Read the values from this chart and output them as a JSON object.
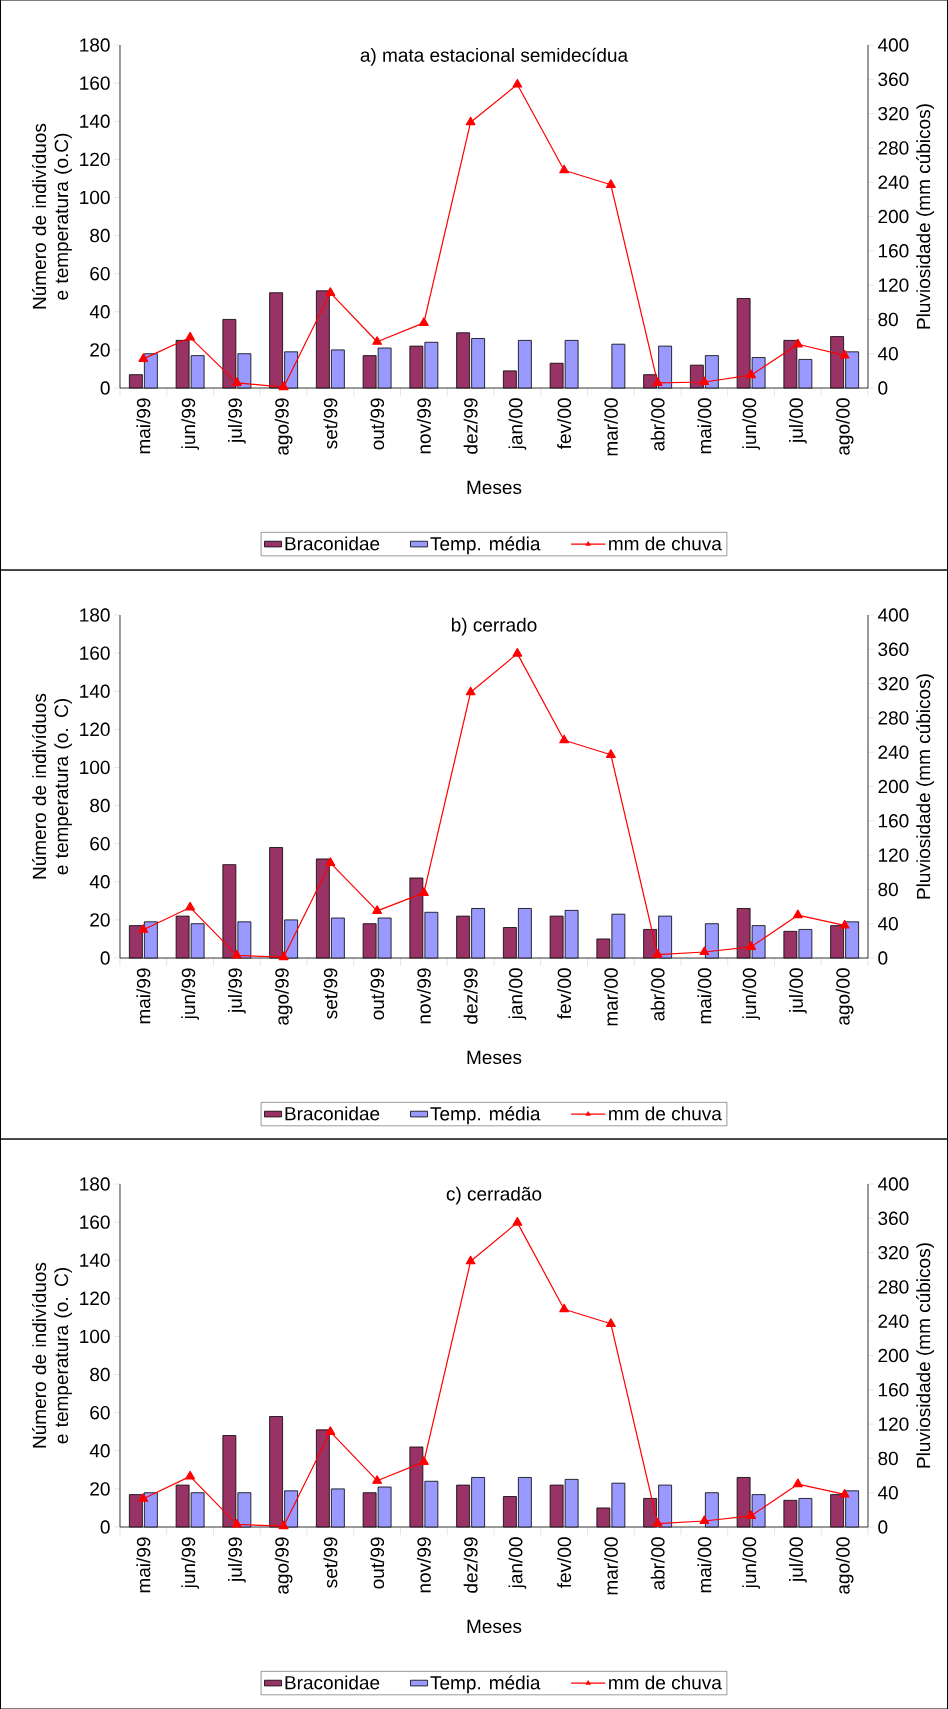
{
  "chart_data": [
    {
      "type": "bar",
      "title": "a) mata estacional semidecídua",
      "xlabel": "Meses",
      "ylabel": "Número de indivíduos e temperatura (o.C)",
      "y2label": "Pluviosidade (mm cúbicos)",
      "categories": [
        "mai/99",
        "jun/99",
        "jul/99",
        "ago/99",
        "set/99",
        "out/99",
        "nov/99",
        "dez/99",
        "jan/00",
        "fev/00",
        "mar/00",
        "abr/00",
        "mai/00",
        "jun/00",
        "jul/00",
        "ago/00"
      ],
      "series": [
        {
          "name": "Braconidae",
          "color": "#993366",
          "values": [
            7,
            25,
            36,
            50,
            51,
            17,
            22,
            29,
            9,
            13,
            null,
            7,
            12,
            47,
            25,
            27
          ]
        },
        {
          "name": "Temp. média",
          "color": "#9999ff",
          "values": [
            18,
            17,
            18,
            19,
            20,
            21,
            24,
            26,
            25,
            25,
            23,
            22,
            17,
            16,
            15,
            19
          ]
        },
        {
          "name": "mm de chuva",
          "type": "line",
          "axis": "y2",
          "marker": "triangle",
          "color": "#ff0000",
          "values": [
            34,
            59,
            6,
            1,
            111,
            54,
            76,
            310,
            354,
            254,
            237,
            6,
            7,
            15,
            51,
            38
          ]
        }
      ],
      "ylim": [
        0,
        180
      ],
      "yticks": [
        0,
        20,
        40,
        60,
        80,
        100,
        120,
        140,
        160,
        180
      ],
      "y2lim": [
        0,
        400
      ],
      "y2ticks": [
        0,
        40,
        80,
        120,
        160,
        200,
        240,
        280,
        320,
        360,
        400
      ],
      "legend": "bottom"
    },
    {
      "type": "bar",
      "title": "b) cerrado",
      "xlabel": "Meses",
      "ylabel": "Número de indivíduos e temperatura (o. C)",
      "y2label": "Pluviosidade (mm cúbicos)",
      "categories": [
        "mai/99",
        "jun/99",
        "jul/99",
        "ago/99",
        "set/99",
        "out/99",
        "nov/99",
        "dez/99",
        "jan/00",
        "fev/00",
        "mar/00",
        "abr/00",
        "mai/00",
        "jun/00",
        "jul/00",
        "ago/00"
      ],
      "series": [
        {
          "name": "Braconidae",
          "color": "#993366",
          "values": [
            17,
            22,
            49,
            58,
            52,
            18,
            42,
            22,
            16,
            22,
            10,
            15,
            null,
            26,
            14,
            17
          ]
        },
        {
          "name": "Temp. média",
          "color": "#9999ff",
          "values": [
            19,
            18,
            19,
            20,
            21,
            21,
            24,
            26,
            26,
            25,
            23,
            22,
            18,
            17,
            15,
            19
          ]
        },
        {
          "name": "mm de chuva",
          "type": "line",
          "axis": "y2",
          "marker": "triangle",
          "color": "#ff0000",
          "values": [
            33,
            59,
            3,
            1,
            111,
            55,
            76,
            310,
            355,
            254,
            237,
            4,
            7,
            13,
            50,
            38
          ]
        }
      ],
      "ylim": [
        0,
        180
      ],
      "yticks": [
        0,
        20,
        40,
        60,
        80,
        100,
        120,
        140,
        160,
        180
      ],
      "y2lim": [
        0,
        400
      ],
      "y2ticks": [
        0,
        40,
        80,
        120,
        160,
        200,
        240,
        280,
        320,
        360,
        400
      ],
      "legend": "bottom"
    },
    {
      "type": "bar",
      "title": "c) cerradão",
      "xlabel": "Meses",
      "ylabel": "Número de indivíduos e temperatura (o. C)",
      "y2label": "Pluviosidade (mm cúbicos)",
      "categories": [
        "mai/99",
        "jun/99",
        "jul/99",
        "ago/99",
        "set/99",
        "out/99",
        "nov/99",
        "dez/99",
        "jan/00",
        "fev/00",
        "mar/00",
        "abr/00",
        "mai/00",
        "jun/00",
        "jul/00",
        "ago/00"
      ],
      "series": [
        {
          "name": "Braconidae",
          "color": "#993366",
          "values": [
            17,
            22,
            48,
            58,
            51,
            18,
            42,
            22,
            16,
            22,
            10,
            15,
            null,
            26,
            14,
            17
          ]
        },
        {
          "name": "Temp. média",
          "color": "#9999ff",
          "values": [
            18,
            18,
            18,
            19,
            20,
            21,
            24,
            26,
            26,
            25,
            23,
            22,
            18,
            17,
            15,
            19
          ]
        },
        {
          "name": "mm de chuva",
          "type": "line",
          "axis": "y2",
          "marker": "triangle",
          "color": "#ff0000",
          "values": [
            33,
            59,
            3,
            1,
            111,
            54,
            76,
            310,
            355,
            254,
            237,
            4,
            7,
            13,
            50,
            38
          ]
        }
      ],
      "ylim": [
        0,
        180
      ],
      "yticks": [
        0,
        20,
        40,
        60,
        80,
        100,
        120,
        140,
        160,
        180
      ],
      "y2lim": [
        0,
        400
      ],
      "y2ticks": [
        0,
        40,
        80,
        120,
        160,
        200,
        240,
        280,
        320,
        360,
        400
      ],
      "legend": "bottom"
    }
  ]
}
